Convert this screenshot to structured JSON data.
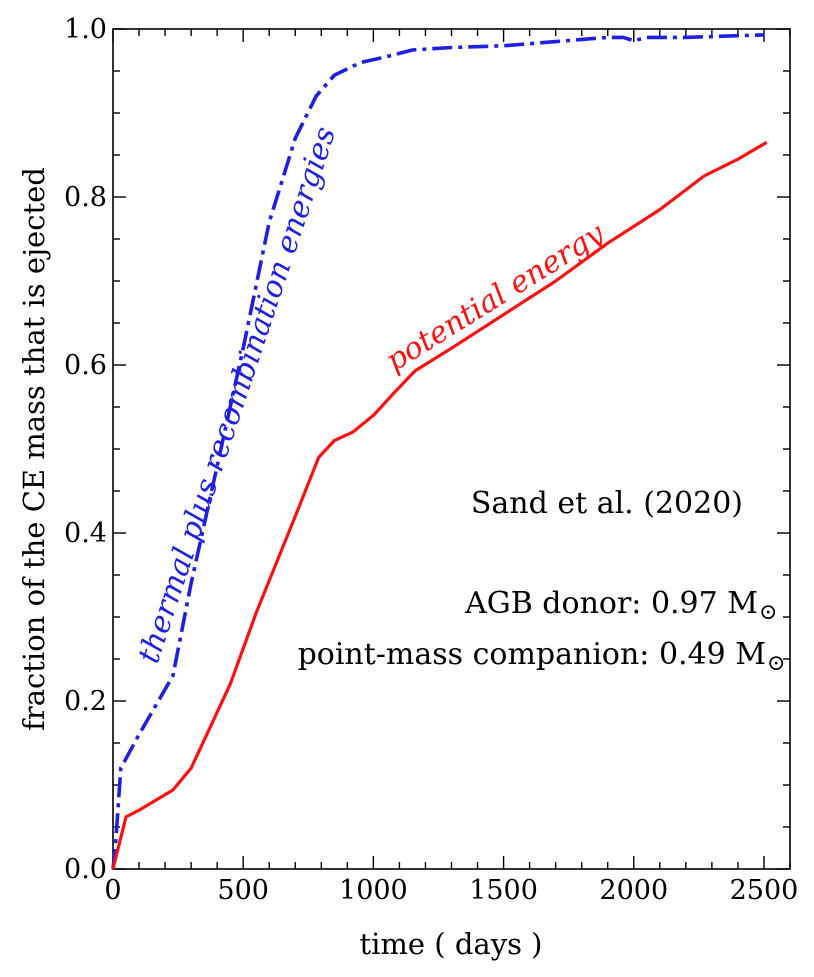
{
  "chart_data": {
    "type": "line",
    "title": "",
    "xlabel": "time ( days )",
    "ylabel": "fraction of the CE mass that is ejected",
    "xlim": [
      0,
      2600
    ],
    "ylim": [
      0,
      1.0
    ],
    "xticks": [
      0,
      500,
      1000,
      1500,
      2000,
      2500
    ],
    "yticks": [
      0.0,
      0.2,
      0.4,
      0.6,
      0.8,
      1.0
    ],
    "xtick_labels": [
      "0",
      "500",
      "1000",
      "1500",
      "2000",
      "2500"
    ],
    "ytick_labels": [
      "0.0",
      "0.2",
      "0.4",
      "0.6",
      "0.8",
      "1.0"
    ],
    "grid": false,
    "series": [
      {
        "name": "thermal plus recombination energies",
        "color": "#1f1fe0",
        "style": "dash-dot",
        "x": [
          0,
          10,
          30,
          100,
          230,
          300,
          400,
          500,
          600,
          700,
          780,
          850,
          950,
          1050,
          1150,
          1300,
          1500,
          1700,
          1900,
          1960,
          2000,
          2050,
          2200,
          2500
        ],
        "y": [
          0.0,
          0.03,
          0.12,
          0.16,
          0.23,
          0.34,
          0.48,
          0.62,
          0.77,
          0.87,
          0.92,
          0.945,
          0.96,
          0.967,
          0.975,
          0.978,
          0.98,
          0.985,
          0.99,
          0.99,
          0.986,
          0.99,
          0.99,
          0.993
        ]
      },
      {
        "name": "potential energy",
        "color": "#ff1010",
        "style": "solid",
        "x": [
          0,
          50,
          100,
          230,
          300,
          450,
          550,
          700,
          790,
          850,
          920,
          1000,
          1080,
          1160,
          1300,
          1500,
          1700,
          1900,
          2100,
          2270,
          2400,
          2510
        ],
        "y": [
          0.0,
          0.062,
          0.07,
          0.094,
          0.12,
          0.22,
          0.305,
          0.42,
          0.49,
          0.51,
          0.52,
          0.54,
          0.567,
          0.593,
          0.62,
          0.66,
          0.7,
          0.745,
          0.785,
          0.825,
          0.845,
          0.865
        ]
      }
    ],
    "annotations": [
      {
        "text": "Sand et al. (2020)"
      },
      {
        "text": "AGB donor: 0.97 M"
      },
      {
        "text": "point-mass companion: 0.49 M"
      }
    ],
    "sun_symbol": "⊙"
  }
}
